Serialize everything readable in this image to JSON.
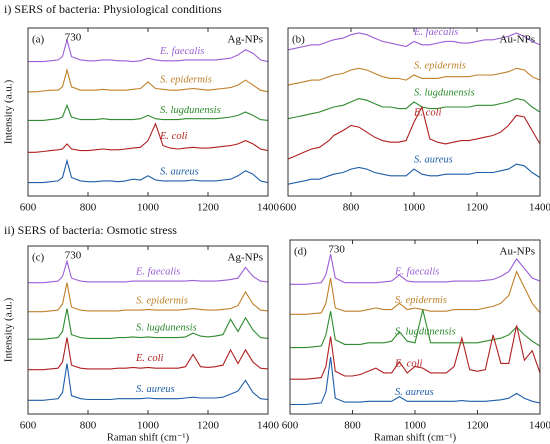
{
  "sections": [
    "i) SERS of bacteria: Physiological conditions",
    "ii) SERS of bacteria: Osmotic stress"
  ],
  "chart_data": [
    {
      "type": "line",
      "panel": "(a)",
      "title": "Ag-NPs",
      "y_label": "Intensity (a.u.)",
      "annotations": [
        {
          "x": 730,
          "text": "730"
        }
      ],
      "xlim": [
        600,
        1400
      ],
      "xticks": [
        600,
        800,
        1000,
        1200,
        1400
      ],
      "ylim": [
        0,
        10
      ],
      "x": [
        600,
        625,
        650,
        675,
        700,
        715,
        730,
        745,
        775,
        800,
        825,
        850,
        875,
        900,
        925,
        950,
        975,
        1000,
        1025,
        1050,
        1075,
        1100,
        1125,
        1150,
        1175,
        1200,
        1225,
        1250,
        1275,
        1300,
        1325,
        1350,
        1375,
        1400
      ],
      "series": [
        {
          "name": "E. faecalis",
          "color": "#9b5fd6",
          "values": [
            8.0,
            8.0,
            8.0,
            8.05,
            8.1,
            8.3,
            9.3,
            8.3,
            8.1,
            8.05,
            8.05,
            8.1,
            8.1,
            8.05,
            8.05,
            8.0,
            8.05,
            8.2,
            8.1,
            8.05,
            8.05,
            8.05,
            8.1,
            8.1,
            8.1,
            8.1,
            8.1,
            8.15,
            8.2,
            8.4,
            8.7,
            8.5,
            8.1,
            8.0
          ]
        },
        {
          "name": "S. epidermis",
          "color": "#c0802a",
          "values": [
            6.2,
            6.2,
            6.25,
            6.3,
            6.3,
            6.5,
            7.5,
            6.5,
            6.3,
            6.3,
            6.3,
            6.35,
            6.3,
            6.3,
            6.3,
            6.35,
            6.4,
            6.8,
            6.4,
            6.35,
            6.3,
            6.3,
            6.35,
            6.4,
            6.35,
            6.3,
            6.35,
            6.4,
            6.45,
            6.6,
            6.9,
            6.6,
            6.3,
            6.2
          ]
        },
        {
          "name": "S. lugdunensis",
          "color": "#2e8b2e",
          "values": [
            4.5,
            4.5,
            4.5,
            4.55,
            4.6,
            4.7,
            5.4,
            4.7,
            4.55,
            4.55,
            4.55,
            4.6,
            4.55,
            4.55,
            4.55,
            4.55,
            4.6,
            4.8,
            4.6,
            4.55,
            4.55,
            4.55,
            4.6,
            4.6,
            4.6,
            4.6,
            4.6,
            4.65,
            4.7,
            4.8,
            5.0,
            4.8,
            4.55,
            4.5
          ]
        },
        {
          "name": "E. coli",
          "color": "#b02020",
          "values": [
            2.6,
            2.6,
            2.65,
            2.7,
            2.75,
            2.8,
            3.1,
            2.8,
            2.7,
            2.7,
            2.75,
            2.8,
            2.75,
            2.75,
            2.8,
            2.85,
            2.9,
            3.3,
            4.3,
            3.0,
            2.85,
            2.8,
            2.85,
            2.9,
            2.85,
            2.85,
            2.9,
            2.95,
            3.0,
            3.1,
            3.3,
            3.1,
            2.8,
            2.7
          ]
        },
        {
          "name": "S. aureus",
          "color": "#1f5fa8",
          "values": [
            0.8,
            0.8,
            0.8,
            0.85,
            0.9,
            1.1,
            2.1,
            1.1,
            0.9,
            0.85,
            0.85,
            0.9,
            0.9,
            0.85,
            0.9,
            1.0,
            0.95,
            1.2,
            0.95,
            0.9,
            0.9,
            0.9,
            0.9,
            0.95,
            0.9,
            0.9,
            0.9,
            0.95,
            1.0,
            1.2,
            1.5,
            1.3,
            0.9,
            0.8
          ]
        }
      ]
    },
    {
      "type": "line",
      "panel": "(b)",
      "title": "Au-NPs",
      "xlim": [
        600,
        1400
      ],
      "xticks": [
        600,
        800,
        1000,
        1200,
        1400
      ],
      "ylim": [
        0,
        10
      ],
      "x": [
        600,
        625,
        650,
        675,
        700,
        715,
        730,
        745,
        775,
        800,
        825,
        850,
        875,
        900,
        925,
        950,
        975,
        1000,
        1025,
        1050,
        1075,
        1100,
        1125,
        1150,
        1175,
        1200,
        1225,
        1250,
        1275,
        1300,
        1325,
        1350,
        1375,
        1400
      ],
      "series": [
        {
          "name": "E. faecalis",
          "color": "#9b5fd6",
          "values": [
            8.7,
            8.8,
            8.9,
            9.0,
            9.0,
            9.1,
            9.2,
            9.3,
            9.4,
            9.6,
            9.7,
            9.6,
            9.4,
            9.2,
            9.1,
            9.0,
            8.9,
            9.2,
            9.0,
            9.0,
            9.1,
            9.2,
            9.2,
            9.1,
            9.1,
            9.2,
            9.3,
            9.3,
            9.4,
            9.5,
            9.7,
            9.5,
            9.2,
            9.0
          ]
        },
        {
          "name": "S. epidermis",
          "color": "#c0802a",
          "values": [
            6.6,
            6.7,
            6.8,
            6.9,
            6.9,
            7.0,
            7.1,
            7.2,
            7.3,
            7.5,
            7.6,
            7.5,
            7.3,
            7.1,
            7.0,
            7.0,
            6.9,
            7.2,
            7.0,
            7.0,
            7.0,
            7.1,
            7.1,
            7.1,
            7.1,
            7.2,
            7.2,
            7.2,
            7.3,
            7.4,
            7.6,
            7.5,
            7.1,
            6.9
          ]
        },
        {
          "name": "S. lugdunensis",
          "color": "#2e8b2e",
          "values": [
            4.6,
            4.7,
            4.8,
            4.9,
            5.0,
            5.1,
            5.2,
            5.3,
            5.4,
            5.6,
            5.8,
            5.7,
            5.5,
            5.3,
            5.3,
            5.2,
            5.2,
            5.6,
            5.3,
            5.2,
            5.2,
            5.3,
            5.3,
            5.3,
            5.3,
            5.4,
            5.4,
            5.4,
            5.5,
            5.6,
            5.8,
            5.7,
            5.3,
            5.0
          ]
        },
        {
          "name": "E. coli",
          "color": "#b02020",
          "values": [
            2.2,
            2.4,
            2.6,
            2.8,
            2.9,
            3.1,
            3.3,
            3.6,
            3.9,
            4.2,
            4.1,
            3.8,
            3.5,
            3.3,
            3.2,
            3.2,
            3.3,
            4.4,
            5.3,
            3.4,
            3.2,
            3.1,
            3.2,
            3.3,
            3.3,
            3.4,
            3.5,
            3.6,
            3.8,
            4.2,
            4.8,
            4.7,
            3.9,
            3.1
          ]
        },
        {
          "name": "S. aureus",
          "color": "#1f5fa8",
          "values": [
            0.7,
            0.8,
            0.9,
            1.0,
            1.0,
            1.1,
            1.2,
            1.3,
            1.4,
            1.6,
            1.7,
            1.6,
            1.4,
            1.3,
            1.2,
            1.2,
            1.2,
            1.6,
            1.3,
            1.2,
            1.2,
            1.3,
            1.3,
            1.3,
            1.3,
            1.4,
            1.4,
            1.4,
            1.5,
            1.6,
            1.9,
            1.8,
            1.4,
            1.1
          ]
        }
      ]
    },
    {
      "type": "line",
      "panel": "(c)",
      "title": "Ag-NPs",
      "y_label": "Intensity (a.u.)",
      "x_label": "Raman shift (cm⁻¹)",
      "annotations": [
        {
          "x": 730,
          "text": "730"
        }
      ],
      "xlim": [
        600,
        1400
      ],
      "xticks": [
        600,
        800,
        1000,
        1200,
        1400
      ],
      "ylim": [
        0,
        11
      ],
      "x": [
        600,
        625,
        650,
        675,
        700,
        715,
        730,
        745,
        775,
        800,
        825,
        850,
        875,
        900,
        925,
        950,
        975,
        1000,
        1025,
        1050,
        1075,
        1100,
        1125,
        1150,
        1175,
        1200,
        1225,
        1250,
        1275,
        1300,
        1325,
        1350,
        1375,
        1400
      ],
      "series": [
        {
          "name": "E. faecalis",
          "color": "#9b5fd6",
          "values": [
            8.6,
            8.6,
            8.6,
            8.65,
            8.7,
            9.0,
            10.0,
            8.9,
            8.7,
            8.65,
            8.65,
            8.65,
            8.65,
            8.65,
            8.65,
            8.7,
            8.7,
            8.7,
            8.7,
            8.7,
            8.7,
            8.7,
            8.7,
            8.75,
            8.7,
            8.7,
            8.7,
            8.75,
            8.8,
            8.9,
            9.6,
            9.0,
            8.7,
            8.65
          ]
        },
        {
          "name": "S. epidermis",
          "color": "#c0802a",
          "values": [
            6.7,
            6.7,
            6.7,
            6.75,
            6.8,
            7.2,
            8.6,
            7.0,
            6.8,
            6.75,
            6.75,
            6.75,
            6.75,
            6.75,
            6.8,
            6.8,
            6.8,
            6.85,
            6.8,
            6.8,
            6.8,
            6.8,
            6.85,
            6.9,
            6.85,
            6.8,
            6.8,
            6.85,
            6.9,
            7.1,
            8.0,
            7.2,
            6.8,
            6.75
          ]
        },
        {
          "name": "S. lugdunensis",
          "color": "#2e8b2e",
          "values": [
            4.9,
            4.9,
            4.9,
            4.95,
            5.0,
            5.4,
            6.9,
            5.2,
            5.0,
            4.95,
            4.95,
            4.95,
            4.95,
            5.0,
            5.0,
            5.05,
            5.0,
            5.05,
            5.0,
            5.0,
            5.0,
            5.0,
            5.05,
            5.3,
            5.1,
            5.05,
            5.1,
            5.2,
            6.2,
            5.4,
            6.3,
            5.5,
            5.0,
            4.95
          ]
        },
        {
          "name": "E. coli",
          "color": "#b02020",
          "values": [
            2.9,
            2.9,
            2.9,
            2.95,
            3.0,
            3.4,
            5.0,
            3.2,
            3.0,
            2.95,
            2.95,
            2.95,
            2.95,
            3.0,
            3.0,
            3.05,
            3.0,
            3.05,
            3.0,
            3.0,
            3.0,
            3.0,
            3.1,
            3.9,
            3.1,
            3.05,
            3.1,
            3.2,
            4.2,
            3.3,
            4.2,
            3.4,
            3.0,
            2.95
          ]
        },
        {
          "name": "S. aureus",
          "color": "#1f5fa8",
          "values": [
            0.9,
            0.9,
            0.9,
            0.95,
            1.0,
            1.4,
            3.3,
            1.2,
            1.0,
            0.95,
            0.95,
            0.95,
            0.95,
            1.0,
            1.0,
            1.0,
            1.0,
            1.05,
            1.0,
            1.0,
            1.0,
            1.0,
            1.05,
            1.1,
            1.05,
            1.05,
            1.05,
            1.1,
            1.3,
            1.5,
            2.2,
            1.4,
            1.0,
            0.95
          ]
        }
      ]
    },
    {
      "type": "line",
      "panel": "(d)",
      "title": "Au-NPs",
      "x_label": "Raman shift (cm⁻¹)",
      "annotations": [
        {
          "x": 730,
          "text": "730"
        }
      ],
      "xlim": [
        600,
        1400
      ],
      "xticks": [
        600,
        800,
        1000,
        1200,
        1400
      ],
      "ylim": [
        0,
        11
      ],
      "x": [
        600,
        625,
        650,
        675,
        700,
        715,
        730,
        745,
        775,
        800,
        825,
        850,
        875,
        900,
        925,
        950,
        975,
        1000,
        1025,
        1050,
        1075,
        1100,
        1125,
        1150,
        1175,
        1200,
        1225,
        1250,
        1275,
        1300,
        1325,
        1350,
        1375,
        1400
      ],
      "series": [
        {
          "name": "E. faecalis",
          "color": "#9b5fd6",
          "values": [
            8.2,
            8.2,
            8.2,
            8.25,
            8.3,
            8.8,
            10.1,
            8.6,
            8.3,
            8.3,
            8.3,
            8.3,
            8.3,
            8.35,
            8.4,
            8.8,
            8.4,
            8.35,
            8.35,
            8.35,
            8.35,
            8.35,
            8.4,
            8.4,
            8.4,
            8.4,
            8.45,
            8.5,
            8.7,
            9.0,
            9.8,
            9.2,
            8.6,
            8.4
          ]
        },
        {
          "name": "S. epidermis",
          "color": "#c0802a",
          "values": [
            6.3,
            6.3,
            6.3,
            6.35,
            6.4,
            7.0,
            8.6,
            6.7,
            6.5,
            6.5,
            6.5,
            6.6,
            6.7,
            6.6,
            6.6,
            7.0,
            6.6,
            6.7,
            6.6,
            6.5,
            6.5,
            6.5,
            6.6,
            6.6,
            6.6,
            6.6,
            6.7,
            6.8,
            7.0,
            7.5,
            9.0,
            8.0,
            7.0,
            6.4
          ]
        },
        {
          "name": "S. lugdunensis",
          "color": "#2e8b2e",
          "values": [
            4.2,
            4.2,
            4.2,
            4.25,
            4.3,
            5.0,
            6.5,
            4.7,
            4.4,
            4.4,
            4.4,
            4.5,
            4.5,
            4.5,
            4.6,
            5.2,
            4.6,
            4.5,
            6.6,
            4.5,
            4.5,
            4.5,
            4.5,
            4.5,
            4.5,
            4.5,
            4.6,
            4.7,
            4.8,
            5.0,
            5.5,
            5.0,
            4.6,
            4.3
          ]
        },
        {
          "name": "E. coli",
          "color": "#b02020",
          "values": [
            2.2,
            2.2,
            2.2,
            2.25,
            2.3,
            3.0,
            4.9,
            2.7,
            2.4,
            2.4,
            2.5,
            2.7,
            2.9,
            2.6,
            2.6,
            3.3,
            2.6,
            3.0,
            2.9,
            2.6,
            2.6,
            2.6,
            3.0,
            4.8,
            2.8,
            2.7,
            2.8,
            5.0,
            3.2,
            3.2,
            5.6,
            3.4,
            4.0,
            2.6
          ]
        },
        {
          "name": "S. aureus",
          "color": "#1f5fa8",
          "values": [
            0.6,
            0.6,
            0.6,
            0.65,
            0.7,
            1.4,
            3.6,
            1.0,
            0.75,
            0.75,
            0.75,
            0.8,
            0.8,
            0.8,
            0.8,
            1.1,
            0.8,
            0.8,
            0.8,
            0.8,
            0.8,
            0.8,
            0.8,
            0.85,
            0.8,
            0.8,
            0.8,
            0.85,
            0.9,
            1.0,
            1.3,
            1.0,
            0.8,
            0.7
          ]
        }
      ]
    }
  ]
}
